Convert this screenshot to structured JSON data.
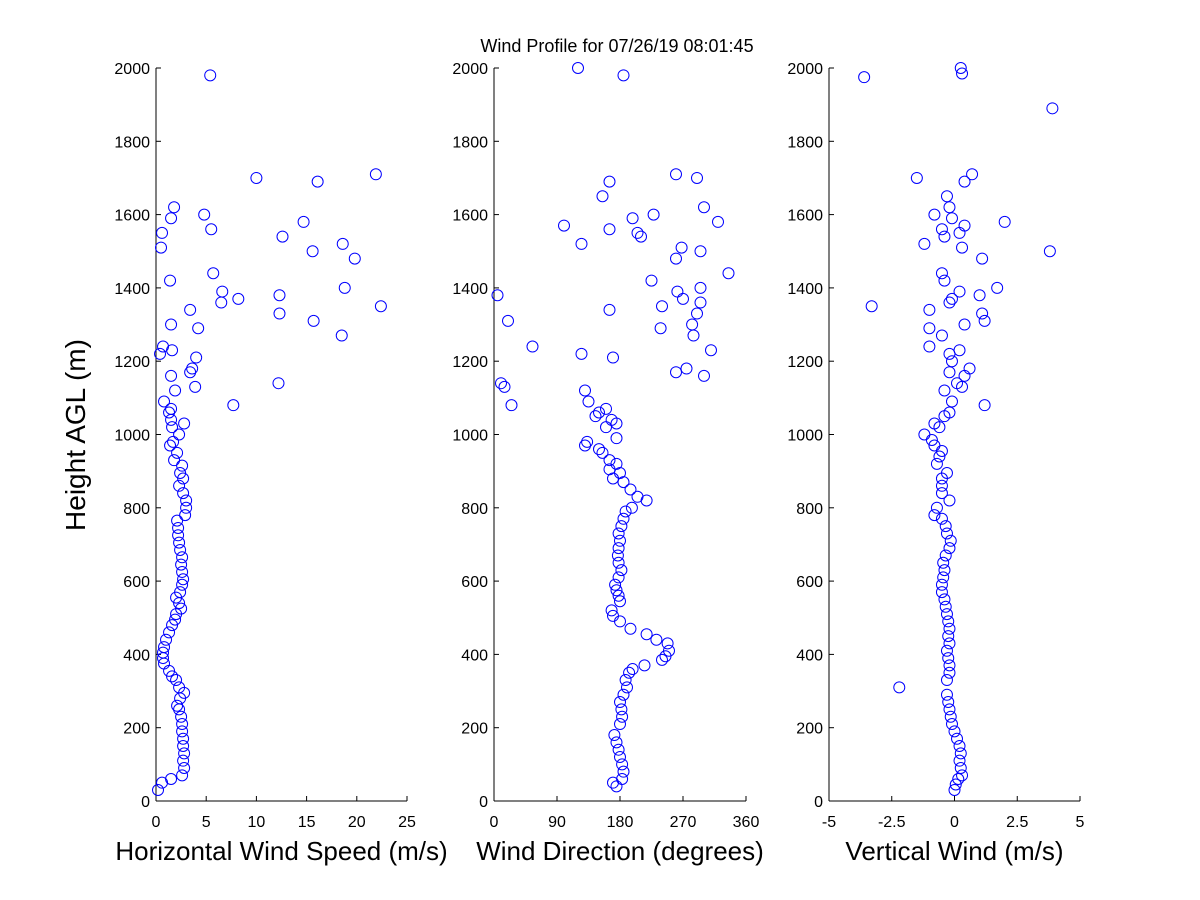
{
  "figure": {
    "title": "Wind Profile for  07/26/19 08:01:45",
    "ylabel": "Height AGL (m)",
    "marker_color": "#0000ff"
  },
  "chart_data": [
    {
      "type": "scatter",
      "id": "speed",
      "xlabel": "Horizontal Wind Speed (m/s)",
      "xlim": [
        0,
        25
      ],
      "xticks": [
        0,
        5,
        10,
        15,
        20,
        25
      ],
      "xtick_labels": [
        "0",
        "5",
        "10",
        "15",
        "20",
        "25"
      ],
      "ylim": [
        0,
        2000
      ],
      "yticks": [
        0,
        200,
        400,
        600,
        800,
        1000,
        1200,
        1400,
        1600,
        1800,
        2000
      ],
      "ytick_labels": [
        "0",
        "200",
        "400",
        "600",
        "800",
        "1000",
        "1200",
        "1400",
        "1600",
        "1800",
        "2000"
      ],
      "points": [
        [
          0.2,
          30
        ],
        [
          0.6,
          50
        ],
        [
          1.5,
          60
        ],
        [
          2.6,
          70
        ],
        [
          2.8,
          90
        ],
        [
          2.7,
          110
        ],
        [
          2.8,
          130
        ],
        [
          2.7,
          150
        ],
        [
          2.7,
          170
        ],
        [
          2.6,
          190
        ],
        [
          2.6,
          210
        ],
        [
          2.5,
          230
        ],
        [
          2.3,
          250
        ],
        [
          2.1,
          260
        ],
        [
          2.4,
          280
        ],
        [
          2.8,
          295
        ],
        [
          2.3,
          310
        ],
        [
          2.0,
          330
        ],
        [
          1.6,
          340
        ],
        [
          1.3,
          355
        ],
        [
          0.8,
          375
        ],
        [
          0.7,
          390
        ],
        [
          0.7,
          405
        ],
        [
          0.8,
          420
        ],
        [
          1.0,
          440
        ],
        [
          1.3,
          460
        ],
        [
          1.6,
          480
        ],
        [
          1.9,
          495
        ],
        [
          2.0,
          510
        ],
        [
          2.5,
          525
        ],
        [
          2.3,
          540
        ],
        [
          2.0,
          555
        ],
        [
          2.4,
          570
        ],
        [
          2.6,
          590
        ],
        [
          2.7,
          605
        ],
        [
          2.6,
          625
        ],
        [
          2.5,
          645
        ],
        [
          2.6,
          665
        ],
        [
          2.4,
          685
        ],
        [
          2.3,
          705
        ],
        [
          2.2,
          725
        ],
        [
          2.2,
          745
        ],
        [
          2.1,
          765
        ],
        [
          2.9,
          780
        ],
        [
          3.0,
          800
        ],
        [
          3.0,
          820
        ],
        [
          2.7,
          840
        ],
        [
          2.3,
          860
        ],
        [
          2.7,
          880
        ],
        [
          2.4,
          895
        ],
        [
          2.6,
          915
        ],
        [
          1.8,
          930
        ],
        [
          2.1,
          950
        ],
        [
          1.4,
          970
        ],
        [
          1.7,
          980
        ],
        [
          2.3,
          1000
        ],
        [
          1.6,
          1020
        ],
        [
          2.8,
          1030
        ],
        [
          1.5,
          1040
        ],
        [
          1.3,
          1060
        ],
        [
          1.5,
          1070
        ],
        [
          0.8,
          1090
        ],
        [
          7.7,
          1080
        ],
        [
          1.9,
          1120
        ],
        [
          3.9,
          1130
        ],
        [
          12.2,
          1140
        ],
        [
          1.5,
          1160
        ],
        [
          3.4,
          1170
        ],
        [
          3.6,
          1180
        ],
        [
          4.0,
          1210
        ],
        [
          0.4,
          1220
        ],
        [
          1.6,
          1230
        ],
        [
          0.7,
          1240
        ],
        [
          18.5,
          1270
        ],
        [
          4.2,
          1290
        ],
        [
          1.5,
          1300
        ],
        [
          15.7,
          1310
        ],
        [
          12.3,
          1330
        ],
        [
          3.4,
          1340
        ],
        [
          22.4,
          1350
        ],
        [
          6.5,
          1360
        ],
        [
          8.2,
          1370
        ],
        [
          12.3,
          1380
        ],
        [
          6.6,
          1390
        ],
        [
          18.8,
          1400
        ],
        [
          1.4,
          1420
        ],
        [
          5.7,
          1440
        ],
        [
          19.8,
          1480
        ],
        [
          15.6,
          1500
        ],
        [
          0.5,
          1510
        ],
        [
          18.6,
          1520
        ],
        [
          12.6,
          1540
        ],
        [
          0.6,
          1550
        ],
        [
          5.5,
          1560
        ],
        [
          14.7,
          1580
        ],
        [
          1.5,
          1590
        ],
        [
          4.8,
          1600
        ],
        [
          1.8,
          1620
        ],
        [
          16.1,
          1690
        ],
        [
          10.0,
          1700
        ],
        [
          21.9,
          1710
        ],
        [
          5.4,
          1980
        ]
      ]
    },
    {
      "type": "scatter",
      "id": "direction",
      "xlabel": "Wind Direction (degrees)",
      "xlim": [
        0,
        360
      ],
      "xticks": [
        0,
        90,
        180,
        270,
        360
      ],
      "xtick_labels": [
        "0",
        "90",
        "180",
        "270",
        "360"
      ],
      "ylim": [
        0,
        2000
      ],
      "yticks": [
        0,
        200,
        400,
        600,
        800,
        1000,
        1200,
        1400,
        1600,
        1800,
        2000
      ],
      "ytick_labels": [
        "0",
        "200",
        "400",
        "600",
        "800",
        "1000",
        "1200",
        "1400",
        "1600",
        "1800",
        "2000"
      ],
      "points": [
        [
          170,
          50
        ],
        [
          175,
          40
        ],
        [
          183,
          60
        ],
        [
          185,
          80
        ],
        [
          183,
          100
        ],
        [
          180,
          120
        ],
        [
          178,
          140
        ],
        [
          175,
          160
        ],
        [
          172,
          180
        ],
        [
          180,
          210
        ],
        [
          183,
          230
        ],
        [
          182,
          250
        ],
        [
          180,
          270
        ],
        [
          185,
          290
        ],
        [
          190,
          310
        ],
        [
          188,
          330
        ],
        [
          193,
          350
        ],
        [
          198,
          360
        ],
        [
          215,
          370
        ],
        [
          240,
          385
        ],
        [
          245,
          395
        ],
        [
          250,
          410
        ],
        [
          248,
          430
        ],
        [
          232,
          440
        ],
        [
          218,
          455
        ],
        [
          195,
          470
        ],
        [
          180,
          490
        ],
        [
          170,
          505
        ],
        [
          168,
          520
        ],
        [
          180,
          545
        ],
        [
          178,
          560
        ],
        [
          175,
          575
        ],
        [
          173,
          590
        ],
        [
          178,
          610
        ],
        [
          182,
          630
        ],
        [
          178,
          650
        ],
        [
          177,
          670
        ],
        [
          178,
          690
        ],
        [
          180,
          710
        ],
        [
          178,
          730
        ],
        [
          182,
          750
        ],
        [
          185,
          770
        ],
        [
          188,
          790
        ],
        [
          197,
          800
        ],
        [
          218,
          820
        ],
        [
          205,
          830
        ],
        [
          195,
          850
        ],
        [
          185,
          870
        ],
        [
          180,
          895
        ],
        [
          170,
          880
        ],
        [
          165,
          905
        ],
        [
          175,
          920
        ],
        [
          165,
          930
        ],
        [
          155,
          950
        ],
        [
          150,
          960
        ],
        [
          130,
          970
        ],
        [
          133,
          980
        ],
        [
          175,
          990
        ],
        [
          160,
          1020
        ],
        [
          175,
          1030
        ],
        [
          168,
          1040
        ],
        [
          145,
          1050
        ],
        [
          150,
          1060
        ],
        [
          160,
          1070
        ],
        [
          135,
          1090
        ],
        [
          130,
          1120
        ],
        [
          25,
          1080
        ],
        [
          15,
          1130
        ],
        [
          10,
          1140
        ],
        [
          300,
          1160
        ],
        [
          260,
          1170
        ],
        [
          275,
          1180
        ],
        [
          170,
          1210
        ],
        [
          125,
          1220
        ],
        [
          310,
          1230
        ],
        [
          55,
          1240
        ],
        [
          285,
          1270
        ],
        [
          238,
          1290
        ],
        [
          283,
          1300
        ],
        [
          20,
          1310
        ],
        [
          290,
          1330
        ],
        [
          165,
          1340
        ],
        [
          240,
          1350
        ],
        [
          295,
          1360
        ],
        [
          270,
          1370
        ],
        [
          5,
          1380
        ],
        [
          262,
          1390
        ],
        [
          295,
          1400
        ],
        [
          225,
          1420
        ],
        [
          335,
          1440
        ],
        [
          260,
          1480
        ],
        [
          295,
          1500
        ],
        [
          268,
          1510
        ],
        [
          125,
          1520
        ],
        [
          210,
          1540
        ],
        [
          205,
          1550
        ],
        [
          165,
          1560
        ],
        [
          100,
          1570
        ],
        [
          320,
          1580
        ],
        [
          198,
          1590
        ],
        [
          228,
          1600
        ],
        [
          300,
          1620
        ],
        [
          155,
          1650
        ],
        [
          165,
          1690
        ],
        [
          290,
          1700
        ],
        [
          260,
          1710
        ],
        [
          185,
          1980
        ],
        [
          120,
          2000
        ]
      ]
    },
    {
      "type": "scatter",
      "id": "vertical",
      "xlabel": "Vertical Wind (m/s)",
      "xlim": [
        -5,
        5
      ],
      "xticks": [
        -5,
        -2.5,
        0,
        2.5,
        5
      ],
      "xtick_labels": [
        "-5",
        "-2.5",
        "0",
        "2.5",
        "5"
      ],
      "ylim": [
        0,
        2000
      ],
      "yticks": [
        0,
        200,
        400,
        600,
        800,
        1000,
        1200,
        1400,
        1600,
        1800,
        2000
      ],
      "ytick_labels": [
        "0",
        "200",
        "400",
        "600",
        "800",
        "1000",
        "1200",
        "1400",
        "1600",
        "1800",
        "2000"
      ],
      "points": [
        [
          0.0,
          30
        ],
        [
          0.05,
          45
        ],
        [
          0.15,
          60
        ],
        [
          0.3,
          70
        ],
        [
          0.25,
          90
        ],
        [
          0.2,
          110
        ],
        [
          0.25,
          130
        ],
        [
          0.2,
          150
        ],
        [
          0.1,
          170
        ],
        [
          0.0,
          190
        ],
        [
          -0.1,
          210
        ],
        [
          -0.15,
          230
        ],
        [
          -0.2,
          250
        ],
        [
          -0.25,
          270
        ],
        [
          -0.3,
          290
        ],
        [
          -2.2,
          310
        ],
        [
          -0.3,
          330
        ],
        [
          -0.2,
          350
        ],
        [
          -0.2,
          370
        ],
        [
          -0.25,
          390
        ],
        [
          -0.3,
          410
        ],
        [
          -0.2,
          430
        ],
        [
          -0.25,
          450
        ],
        [
          -0.2,
          470
        ],
        [
          -0.25,
          490
        ],
        [
          -0.3,
          510
        ],
        [
          -0.35,
          530
        ],
        [
          -0.4,
          550
        ],
        [
          -0.5,
          570
        ],
        [
          -0.5,
          590
        ],
        [
          -0.45,
          610
        ],
        [
          -0.4,
          630
        ],
        [
          -0.45,
          650
        ],
        [
          -0.35,
          670
        ],
        [
          -0.2,
          690
        ],
        [
          -0.15,
          710
        ],
        [
          -0.3,
          730
        ],
        [
          -0.35,
          750
        ],
        [
          -0.5,
          770
        ],
        [
          -0.8,
          780
        ],
        [
          -0.7,
          800
        ],
        [
          -0.2,
          820
        ],
        [
          -0.5,
          840
        ],
        [
          -0.5,
          860
        ],
        [
          -0.5,
          880
        ],
        [
          -0.3,
          895
        ],
        [
          -0.7,
          920
        ],
        [
          -0.6,
          940
        ],
        [
          -0.5,
          955
        ],
        [
          -0.8,
          970
        ],
        [
          -0.9,
          985
        ],
        [
          -1.2,
          1000
        ],
        [
          -0.6,
          1020
        ],
        [
          -0.8,
          1030
        ],
        [
          -0.4,
          1050
        ],
        [
          -0.2,
          1060
        ],
        [
          -0.1,
          1090
        ],
        [
          1.2,
          1080
        ],
        [
          -0.4,
          1120
        ],
        [
          0.3,
          1130
        ],
        [
          0.1,
          1140
        ],
        [
          0.4,
          1160
        ],
        [
          -0.2,
          1170
        ],
        [
          0.6,
          1180
        ],
        [
          -0.1,
          1200
        ],
        [
          -0.2,
          1220
        ],
        [
          0.2,
          1230
        ],
        [
          -1.0,
          1240
        ],
        [
          -0.5,
          1270
        ],
        [
          -1.0,
          1290
        ],
        [
          0.4,
          1300
        ],
        [
          1.2,
          1310
        ],
        [
          1.1,
          1330
        ],
        [
          -1.0,
          1340
        ],
        [
          -3.3,
          1350
        ],
        [
          -0.2,
          1360
        ],
        [
          -0.1,
          1370
        ],
        [
          1.0,
          1380
        ],
        [
          0.2,
          1390
        ],
        [
          1.7,
          1400
        ],
        [
          -0.4,
          1420
        ],
        [
          -0.5,
          1440
        ],
        [
          1.1,
          1480
        ],
        [
          3.8,
          1500
        ],
        [
          0.3,
          1510
        ],
        [
          -1.2,
          1520
        ],
        [
          -0.4,
          1540
        ],
        [
          0.2,
          1550
        ],
        [
          -0.5,
          1560
        ],
        [
          0.4,
          1570
        ],
        [
          2.0,
          1580
        ],
        [
          -0.1,
          1590
        ],
        [
          -0.8,
          1600
        ],
        [
          -0.2,
          1620
        ],
        [
          -0.3,
          1650
        ],
        [
          0.4,
          1690
        ],
        [
          -1.5,
          1700
        ],
        [
          0.7,
          1710
        ],
        [
          3.9,
          1890
        ],
        [
          -3.6,
          1975
        ],
        [
          0.3,
          1985
        ],
        [
          0.25,
          2000
        ]
      ]
    }
  ]
}
